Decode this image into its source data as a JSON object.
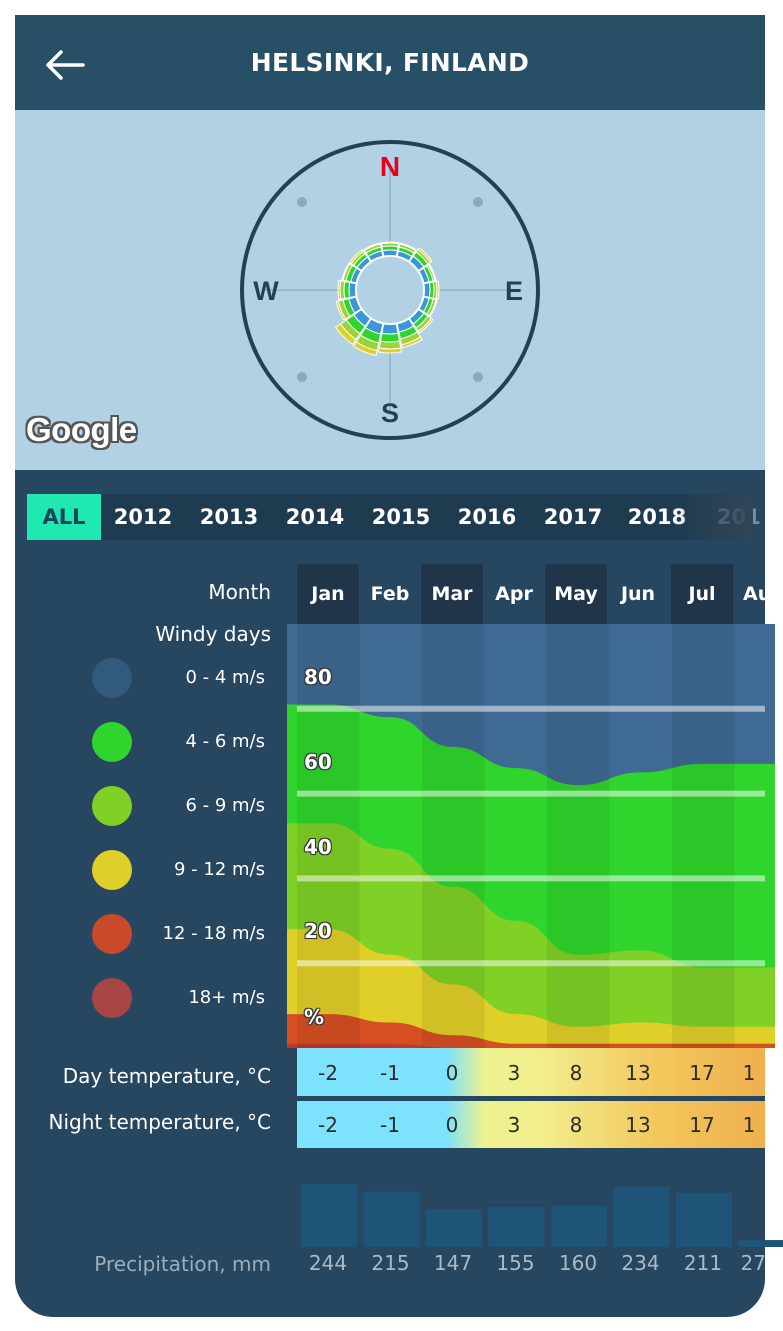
{
  "header": {
    "title": "HELSINKI, FINLAND",
    "back_icon": "arrow-left-icon"
  },
  "map": {
    "provider": "Google",
    "compass": {
      "north": "N",
      "east": "E",
      "south": "S",
      "west": "W",
      "north_color": "#e8001c"
    }
  },
  "years": {
    "tabs": [
      "ALL",
      "2012",
      "2013",
      "2014",
      "2015",
      "2016",
      "2017",
      "2018",
      "201"
    ],
    "selected": "ALL",
    "accent": "#1fe8b0"
  },
  "table": {
    "month_label": "Month",
    "windy_days_label": "Windy days",
    "months": [
      "Jan",
      "Feb",
      "Mar",
      "Apr",
      "May",
      "Jun",
      "Jul",
      "Au"
    ],
    "legend": [
      {
        "label": "0 - 4 m/s",
        "color": "#325a7c"
      },
      {
        "label": "4 - 6 m/s",
        "color": "#2fd52c"
      },
      {
        "label": "6 - 9 m/s",
        "color": "#7fd126"
      },
      {
        "label": "9 - 12 m/s",
        "color": "#e0cf28"
      },
      {
        "label": "12 - 18 m/s",
        "color": "#c94a2a"
      },
      {
        "label": "18+ m/s",
        "color": "#a84545"
      }
    ],
    "y_labels": [
      "80",
      "60",
      "40",
      "20",
      "%"
    ],
    "day_temp_label": "Day temperature, °C",
    "night_temp_label": "Night temperature, °C",
    "day_temps": [
      "-2",
      "-1",
      "0",
      "3",
      "8",
      "13",
      "17",
      "1"
    ],
    "night_temps": [
      "-2",
      "-1",
      "0",
      "3",
      "8",
      "13",
      "17",
      "1"
    ],
    "precip_label": "Precipitation, mm",
    "precip": [
      "244",
      "215",
      "147",
      "155",
      "160",
      "234",
      "211",
      "27"
    ]
  },
  "chart_data": {
    "type": "area",
    "categories": [
      "Jan",
      "Feb",
      "Mar",
      "Apr",
      "May",
      "Jun",
      "Jul"
    ],
    "ylabel": "%",
    "ylim": [
      0,
      100
    ],
    "series": [
      {
        "name": "18+ m/s",
        "values": [
          1,
          1,
          0,
          0,
          0,
          0,
          0
        ]
      },
      {
        "name": "12 - 18 m/s",
        "values": [
          7,
          5,
          3,
          1,
          1,
          1,
          1
        ]
      },
      {
        "name": "9 - 12 m/s",
        "values": [
          20,
          16,
          12,
          7,
          4,
          5,
          4
        ]
      },
      {
        "name": "6 - 9 m/s",
        "values": [
          25,
          25,
          23,
          22,
          17,
          17,
          14
        ]
      },
      {
        "name": "4 - 6 m/s",
        "values": [
          28,
          31,
          33,
          36,
          40,
          42,
          48
        ]
      },
      {
        "name": "0 - 4 m/s",
        "values": [
          19,
          22,
          29,
          34,
          38,
          35,
          33
        ]
      }
    ]
  }
}
